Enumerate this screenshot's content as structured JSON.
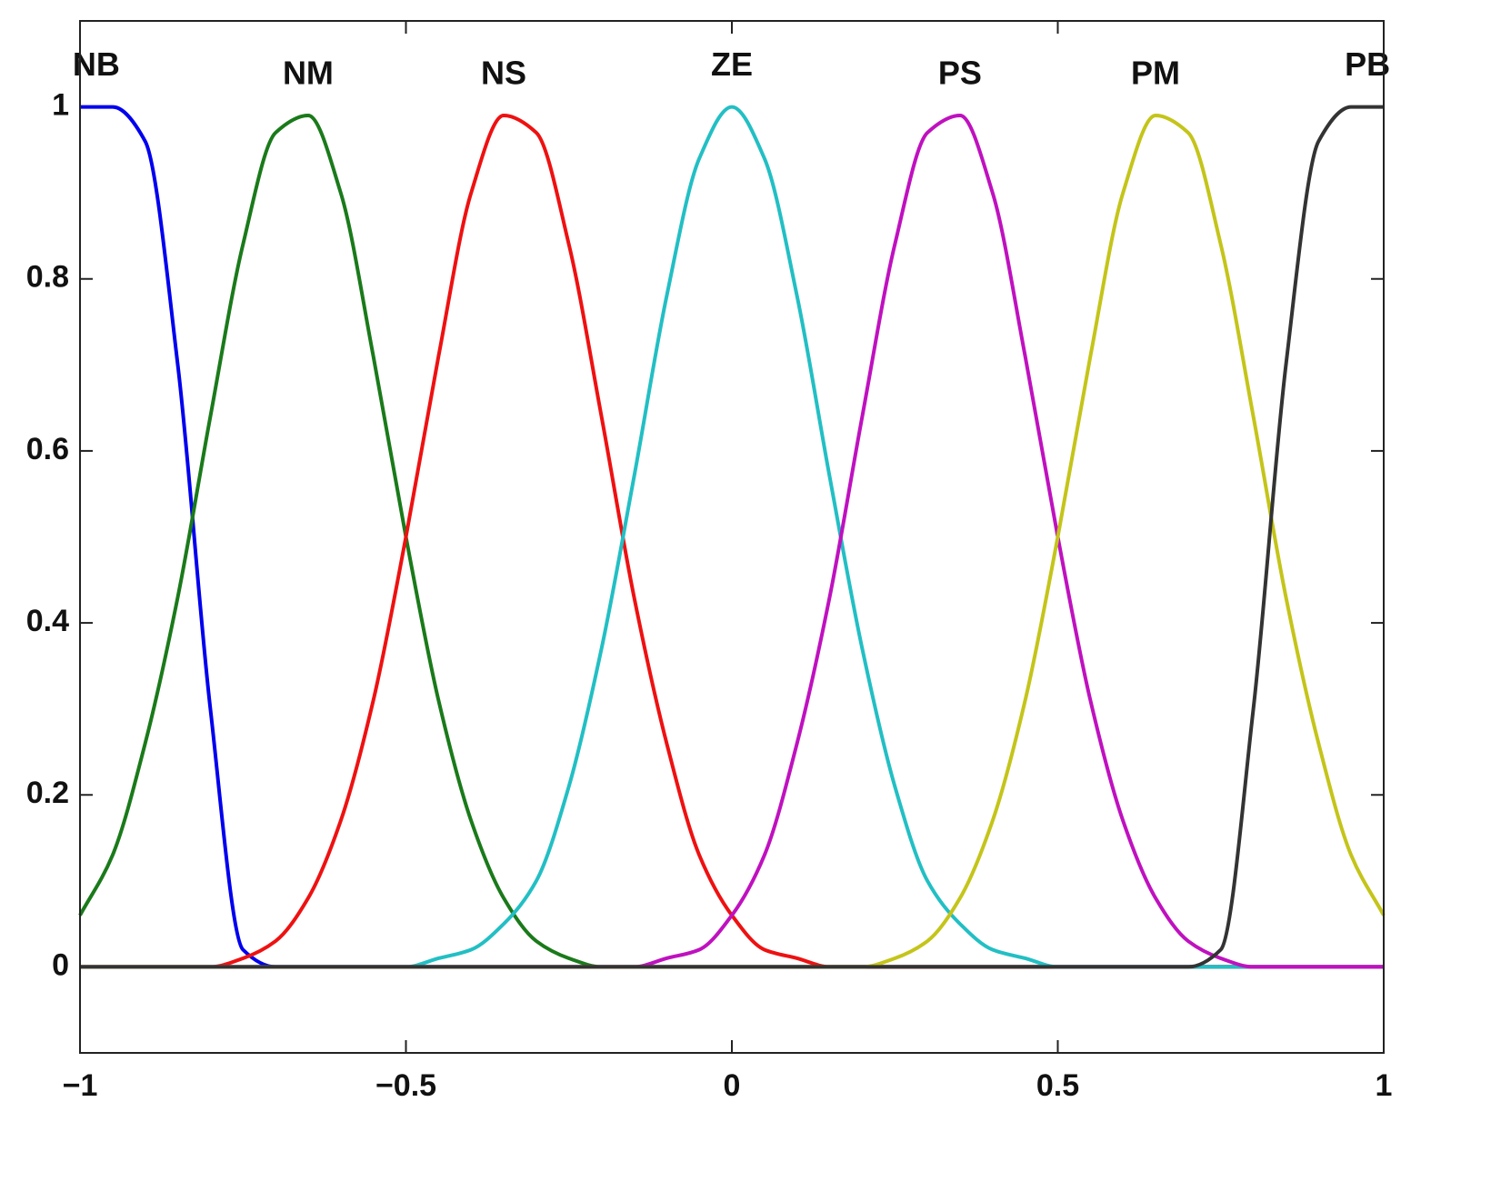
{
  "chart_data": {
    "type": "line",
    "x": [
      -1,
      -0.95,
      -0.9,
      -0.85,
      -0.8,
      -0.75,
      -0.7,
      -0.65,
      -0.6,
      -0.55,
      -0.5,
      -0.45,
      -0.4,
      -0.35,
      -0.3,
      -0.25,
      -0.2,
      -0.15,
      -0.1,
      -0.05,
      0,
      0.05,
      0.1,
      0.15,
      0.2,
      0.25,
      0.3,
      0.35,
      0.4,
      0.45,
      0.5,
      0.55,
      0.6,
      0.65,
      0.7,
      0.75,
      0.8,
      0.85,
      0.9,
      0.95,
      1
    ],
    "series": [
      {
        "name": "NB",
        "color": "#0000ee",
        "values": [
          1,
          1,
          0.96,
          0.7,
          0.3,
          0.02,
          0,
          0,
          0,
          0,
          0,
          0,
          0,
          0,
          0,
          0,
          0,
          0,
          0,
          0,
          0,
          0,
          0,
          0,
          0,
          0,
          0,
          0,
          0,
          0,
          0,
          0,
          0,
          0,
          0,
          0,
          0,
          0,
          0,
          0,
          0
        ]
      },
      {
        "name": "NM",
        "color": "#1a7a1a",
        "values": [
          0.06,
          0.13,
          0.26,
          0.43,
          0.64,
          0.84,
          0.97,
          0.99,
          0.9,
          0.71,
          0.5,
          0.31,
          0.17,
          0.08,
          0.03,
          0.01,
          0,
          0,
          0,
          0,
          0,
          0,
          0,
          0,
          0,
          0,
          0,
          0,
          0,
          0,
          0,
          0,
          0,
          0,
          0,
          0,
          0,
          0,
          0,
          0,
          0
        ]
      },
      {
        "name": "NS",
        "color": "#ee1111",
        "values": [
          0,
          0,
          0,
          0,
          0,
          0.01,
          0.03,
          0.08,
          0.17,
          0.31,
          0.5,
          0.71,
          0.9,
          0.99,
          0.97,
          0.84,
          0.64,
          0.43,
          0.26,
          0.13,
          0.06,
          0.02,
          0.01,
          0,
          0,
          0,
          0,
          0,
          0,
          0,
          0,
          0,
          0,
          0,
          0,
          0,
          0,
          0,
          0,
          0,
          0
        ]
      },
      {
        "name": "ZE",
        "color": "#22bfc4",
        "values": [
          0,
          0,
          0,
          0,
          0,
          0,
          0,
          0,
          0,
          0,
          0,
          0.01,
          0.02,
          0.05,
          0.1,
          0.21,
          0.37,
          0.57,
          0.78,
          0.94,
          1,
          0.94,
          0.78,
          0.57,
          0.37,
          0.21,
          0.1,
          0.05,
          0.02,
          0.01,
          0,
          0,
          0,
          0,
          0,
          0,
          0,
          0,
          0,
          0,
          0
        ]
      },
      {
        "name": "PS",
        "color": "#bf11bf",
        "values": [
          0,
          0,
          0,
          0,
          0,
          0,
          0,
          0,
          0,
          0,
          0,
          0,
          0,
          0,
          0,
          0,
          0,
          0,
          0.01,
          0.02,
          0.06,
          0.13,
          0.26,
          0.43,
          0.64,
          0.84,
          0.97,
          0.99,
          0.9,
          0.71,
          0.5,
          0.31,
          0.17,
          0.08,
          0.03,
          0.01,
          0,
          0,
          0,
          0,
          0
        ]
      },
      {
        "name": "PM",
        "color": "#c4c41a",
        "values": [
          0,
          0,
          0,
          0,
          0,
          0,
          0,
          0,
          0,
          0,
          0,
          0,
          0,
          0,
          0,
          0,
          0,
          0,
          0,
          0,
          0,
          0,
          0,
          0,
          0,
          0.01,
          0.03,
          0.08,
          0.17,
          0.31,
          0.5,
          0.71,
          0.9,
          0.99,
          0.97,
          0.84,
          0.64,
          0.43,
          0.26,
          0.13,
          0.06
        ]
      },
      {
        "name": "PB",
        "color": "#333333",
        "values": [
          0,
          0,
          0,
          0,
          0,
          0,
          0,
          0,
          0,
          0,
          0,
          0,
          0,
          0,
          0,
          0,
          0,
          0,
          0,
          0,
          0,
          0,
          0,
          0,
          0,
          0,
          0,
          0,
          0,
          0,
          0,
          0,
          0,
          0,
          0,
          0.02,
          0.3,
          0.7,
          0.96,
          1,
          1
        ]
      }
    ],
    "xlim": [
      -1,
      1
    ],
    "ylim": [
      -0.1,
      1.1
    ],
    "xticks": [
      {
        "value": -1,
        "label": "−1"
      },
      {
        "value": -0.5,
        "label": "−0.5"
      },
      0,
      0.5,
      1
    ],
    "yticks": [
      0,
      0.2,
      0.4,
      0.6,
      0.8,
      1
    ]
  }
}
